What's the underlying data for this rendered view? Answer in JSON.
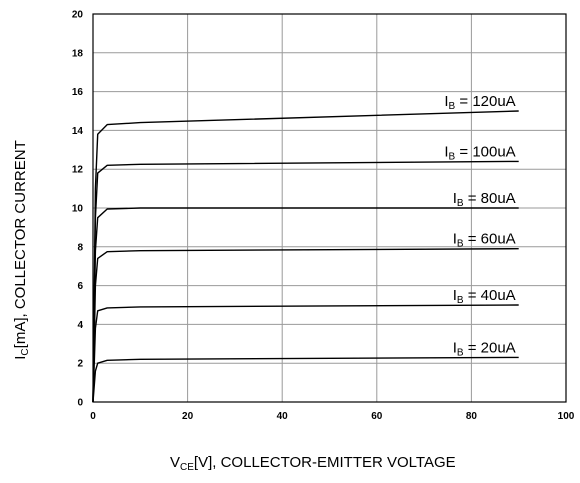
{
  "chart_data": {
    "type": "line",
    "xlabel": {
      "prefix": "V",
      "subscript": "CE",
      "suffix": "[V], COLLECTOR-EMITTER VOLTAGE"
    },
    "ylabel": {
      "prefix": "I",
      "subscript": "C",
      "suffix": "[mA], COLLECTOR CURRENT"
    },
    "xlim": [
      0,
      100
    ],
    "ylim": [
      0,
      20
    ],
    "xticks": [
      0,
      20,
      40,
      60,
      80,
      100
    ],
    "yticks": [
      0,
      2,
      4,
      6,
      8,
      10,
      12,
      14,
      16,
      18,
      20
    ],
    "grid": true,
    "series": [
      {
        "label_prefix": "I",
        "label_subscript": "B",
        "label_suffix": " = 20uA",
        "points": [
          [
            0,
            0
          ],
          [
            0.5,
            1.6
          ],
          [
            1,
            2.0
          ],
          [
            3,
            2.15
          ],
          [
            10,
            2.2
          ],
          [
            90,
            2.3
          ]
        ]
      },
      {
        "label_prefix": "I",
        "label_subscript": "B",
        "label_suffix": " = 40uA",
        "points": [
          [
            0,
            0
          ],
          [
            0.5,
            3.8
          ],
          [
            1,
            4.7
          ],
          [
            3,
            4.85
          ],
          [
            10,
            4.9
          ],
          [
            90,
            5.0
          ]
        ]
      },
      {
        "label_prefix": "I",
        "label_subscript": "B",
        "label_suffix": " = 60uA",
        "points": [
          [
            0,
            0
          ],
          [
            0.5,
            6.0
          ],
          [
            1,
            7.4
          ],
          [
            3,
            7.75
          ],
          [
            10,
            7.8
          ],
          [
            90,
            7.9
          ]
        ]
      },
      {
        "label_prefix": "I",
        "label_subscript": "B",
        "label_suffix": " = 80uA",
        "points": [
          [
            0,
            0
          ],
          [
            0.5,
            7.8
          ],
          [
            1,
            9.5
          ],
          [
            3,
            9.95
          ],
          [
            10,
            10.0
          ],
          [
            90,
            10.0
          ]
        ]
      },
      {
        "label_prefix": "I",
        "label_subscript": "B",
        "label_suffix": " = 100uA",
        "points": [
          [
            0,
            0
          ],
          [
            0.5,
            9.5
          ],
          [
            1,
            11.8
          ],
          [
            3,
            12.2
          ],
          [
            10,
            12.25
          ],
          [
            90,
            12.4
          ]
        ]
      },
      {
        "label_prefix": "I",
        "label_subscript": "B",
        "label_suffix": " = 120uA",
        "points": [
          [
            0,
            0
          ],
          [
            0.5,
            11.0
          ],
          [
            1,
            13.8
          ],
          [
            3,
            14.3
          ],
          [
            10,
            14.4
          ],
          [
            90,
            15.0
          ]
        ]
      }
    ]
  }
}
